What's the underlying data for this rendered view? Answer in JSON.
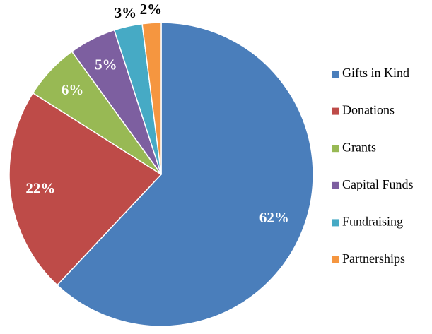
{
  "chart_data": {
    "type": "pie",
    "categories": [
      "Gifts in Kind",
      "Donations",
      "Grants",
      "Capital Funds",
      "Fundraising",
      "Partnerships"
    ],
    "values": [
      62,
      22,
      6,
      5,
      3,
      2
    ],
    "value_labels": [
      "62%",
      "22%",
      "6%",
      "5%",
      "3%",
      "2%"
    ],
    "colors": [
      "#4a7ebb",
      "#be4b48",
      "#98b954",
      "#7d5fa0",
      "#46aac5",
      "#f59640"
    ],
    "legend": "right"
  }
}
